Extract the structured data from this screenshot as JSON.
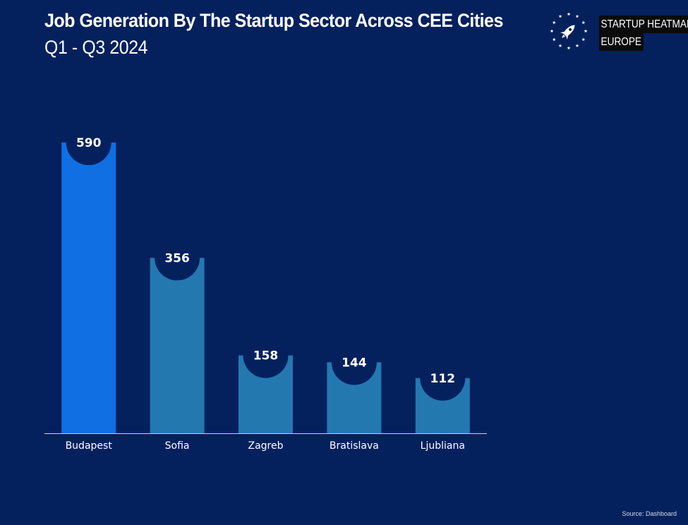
{
  "header": {
    "title": "Job Generation By The Startup Sector Across CEE Cities",
    "subtitle": "Q1 - Q3 2024"
  },
  "logo": {
    "line1": "STARTUP HEATMAP",
    "line2": "EUROPE",
    "icon": "rocket-in-star-circle-icon"
  },
  "footer": {
    "source": "Source: Dashboard"
  },
  "colors": {
    "background": "#04215e",
    "highlight_bar": "#0f6fe3",
    "bar": "#2478b0",
    "label_circle": "#04215e",
    "label_text": "#ffffff",
    "axis": "#c8d0e0",
    "tick_text": "#ffffff"
  },
  "chart_data": {
    "type": "bar",
    "title": "Job Generation By The Startup Sector Across CEE Cities",
    "subtitle": "Q1 - Q3 2024",
    "categories": [
      "Budapest",
      "Sofia",
      "Zagreb",
      "Bratislava",
      "Ljubliana"
    ],
    "values": [
      590,
      356,
      158,
      144,
      112
    ],
    "xlabel": "",
    "ylabel": "",
    "ylim": [
      0,
      600
    ],
    "grid": false,
    "legend": "none",
    "highlighted_category": "Budapest"
  }
}
